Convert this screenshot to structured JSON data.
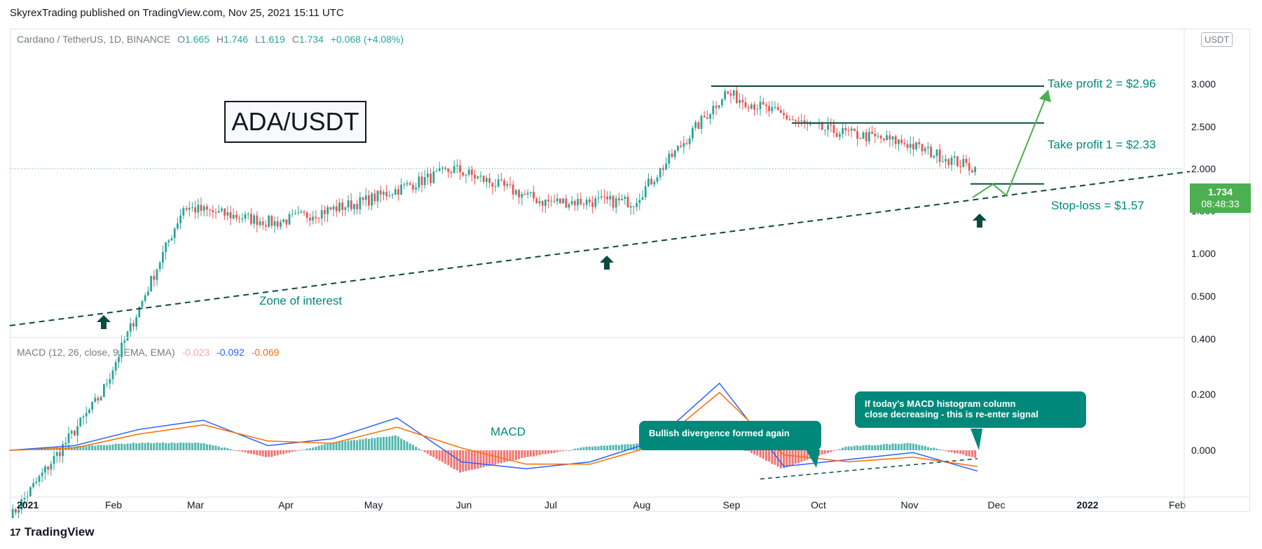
{
  "header": {
    "published": "SkyrexTrading published on TradingView.com, Nov 25, 2021 15:11 UTC"
  },
  "legend": {
    "symbol": "Cardano / TetherUS, 1D, BINANCE",
    "o_label": "O",
    "o": "1.665",
    "h_label": "H",
    "h": "1.746",
    "l_label": "L",
    "l": "1.619",
    "c_label": "C",
    "c": "1.734",
    "change": "+0.068 (+4.08%)"
  },
  "macd_legend": {
    "label": "MACD (12, 26, close, 9, EMA, EMA)",
    "hist": "-0.023",
    "macd": "-0.092",
    "signal": "-0.069"
  },
  "title_box": "ADA/USDT",
  "annotations": {
    "tp2": "Take profit 2 = $2.96",
    "tp1": "Take profit 1 = $2.33",
    "sl": "Stop-loss = $1.57",
    "zone": "Zone of interest",
    "macd_label": "MACD",
    "callout_1": "Bullish divergence formed again",
    "callout_2_line1": "If today's MACD histogram column",
    "callout_2_line2": "close decreasing - this is re-enter signal"
  },
  "price_tag": {
    "price": "1.734",
    "countdown": "08:48:33"
  },
  "currency_tag": "USDT",
  "brand": "TradingView",
  "colors": {
    "up": "#26a69a",
    "down": "#ef5350",
    "accent": "#00897b",
    "macd_line": "#2962ff",
    "signal_line": "#ff6d00",
    "arrow": "#0b4a3f"
  },
  "chart_data": [
    {
      "type": "candlestick",
      "scale": "log",
      "x_ticks": [
        "2021",
        "Feb",
        "Mar",
        "Apr",
        "May",
        "Jun",
        "Jul",
        "Aug",
        "Sep",
        "Oct",
        "Nov",
        "Dec",
        "2022",
        "Feb"
      ],
      "y_ticks": [
        "3.000",
        "2.500",
        "2.000",
        "1.500",
        "1.000",
        "0.500",
        "0.400"
      ],
      "ylim": [
        0.4,
        3.2
      ],
      "monthly_closes": [
        {
          "x": "2021-01-01",
          "y": 0.18
        },
        {
          "x": "2021-02-01",
          "y": 0.4
        },
        {
          "x": "2021-03-01",
          "y": 1.35
        },
        {
          "x": "2021-04-01",
          "y": 1.22
        },
        {
          "x": "2021-05-01",
          "y": 1.4
        },
        {
          "x": "2021-06-01",
          "y": 1.73
        },
        {
          "x": "2021-07-01",
          "y": 1.4
        },
        {
          "x": "2021-08-01",
          "y": 1.4
        },
        {
          "x": "2021-09-01",
          "y": 2.83
        },
        {
          "x": "2021-10-01",
          "y": 2.26
        },
        {
          "x": "2021-11-01",
          "y": 2.05
        },
        {
          "x": "2021-11-25",
          "y": 1.734
        }
      ],
      "levels": {
        "take_profit_2": 2.96,
        "take_profit_1": 2.33,
        "stop_loss": 1.57,
        "last": 1.734
      }
    },
    {
      "type": "line",
      "name": "MACD",
      "y_ticks": [
        "0.200",
        "0.000"
      ],
      "series": [
        {
          "name": "MACD",
          "values": [
            0.0,
            0.02,
            0.09,
            0.13,
            0.02,
            0.05,
            0.14,
            -0.05,
            -0.08,
            -0.05,
            0.04,
            0.29,
            -0.07,
            -0.04,
            -0.01,
            -0.09
          ]
        },
        {
          "name": "Signal",
          "values": [
            0.0,
            0.01,
            0.07,
            0.11,
            0.04,
            0.03,
            0.1,
            0.01,
            -0.06,
            -0.06,
            0.02,
            0.25,
            -0.02,
            -0.05,
            -0.03,
            -0.07
          ]
        }
      ]
    }
  ]
}
